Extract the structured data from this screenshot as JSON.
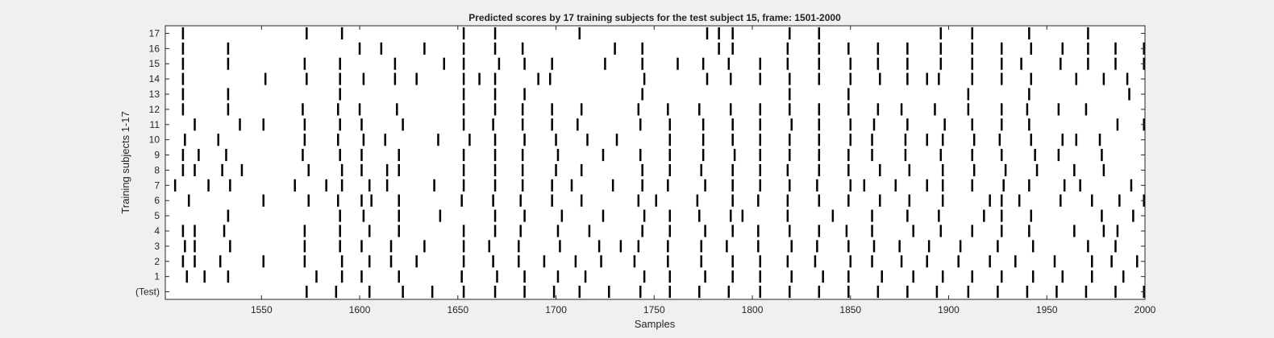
{
  "chart_data": {
    "type": "event-raster",
    "title": "Predicted scores by 17 training subjects for the test subject 15, frame: 1501-2000",
    "xlabel": "Samples",
    "ylabel": "Training subjects 1-17",
    "xlim": [
      1501,
      2000
    ],
    "x_ticks": [
      1550,
      1600,
      1650,
      1700,
      1750,
      1800,
      1850,
      1900,
      1950,
      2000
    ],
    "y_tick_labels": [
      "(Test)",
      "1",
      "2",
      "3",
      "4",
      "5",
      "6",
      "7",
      "8",
      "9",
      "10",
      "11",
      "12",
      "13",
      "14",
      "15",
      "16",
      "17"
    ],
    "grid": false,
    "colors": {
      "background": "#f0f0f0",
      "plot_bg": "#ffffff",
      "mark": "#000000",
      "axis": "#262626"
    },
    "rows": [
      {
        "label": "(Test)",
        "events": [
          1573,
          1588,
          1605,
          1622,
          1637,
          1653,
          1669,
          1684,
          1699,
          1712,
          1727,
          1743,
          1758,
          1773,
          1788,
          1804,
          1819,
          1834,
          1849,
          1864,
          1879,
          1894,
          1910,
          1925,
          1940,
          1955,
          1970,
          1985,
          2000
        ]
      },
      {
        "label": "1",
        "events": [
          1512,
          1521,
          1533,
          1578,
          1591,
          1601,
          1620,
          1652,
          1670,
          1684,
          1701,
          1715,
          1745,
          1758,
          1776,
          1790,
          1804,
          1820,
          1836,
          1849,
          1866,
          1882,
          1897,
          1912,
          1927,
          1943,
          1958,
          1973,
          1989
        ]
      },
      {
        "label": "2",
        "events": [
          1510,
          1516,
          1529,
          1551,
          1572,
          1591,
          1605,
          1616,
          1629,
          1653,
          1668,
          1681,
          1694,
          1710,
          1723,
          1740,
          1757,
          1774,
          1790,
          1804,
          1818,
          1832,
          1850,
          1861,
          1876,
          1889,
          1905,
          1921,
          1934,
          1954,
          1973,
          1983,
          1996
        ]
      },
      {
        "label": "3",
        "events": [
          1511,
          1516,
          1534,
          1572,
          1590,
          1601,
          1616,
          1633,
          1653,
          1666,
          1681,
          1702,
          1722,
          1733,
          1742,
          1757,
          1774,
          1787,
          1803,
          1820,
          1833,
          1849,
          1862,
          1875,
          1890,
          1906,
          1925,
          1943,
          1971,
          1985
        ]
      },
      {
        "label": "4",
        "events": [
          1510,
          1516,
          1531,
          1572,
          1590,
          1605,
          1620,
          1653,
          1669,
          1682,
          1701,
          1717,
          1744,
          1758,
          1776,
          1790,
          1803,
          1819,
          1834,
          1848,
          1861,
          1882,
          1896,
          1912,
          1927,
          1941,
          1964,
          1979,
          1986
        ]
      },
      {
        "label": "5",
        "events": [
          1533,
          1590,
          1602,
          1620,
          1641,
          1669,
          1684,
          1703,
          1724,
          1745,
          1758,
          1773,
          1789,
          1795,
          1818,
          1841,
          1861,
          1879,
          1895,
          1918,
          1927,
          1942,
          1978,
          1994
        ]
      },
      {
        "label": "6",
        "events": [
          1513,
          1551,
          1574,
          1589,
          1601,
          1606,
          1620,
          1652,
          1668,
          1682,
          1698,
          1713,
          1742,
          1751,
          1772,
          1790,
          1803,
          1818,
          1834,
          1849,
          1865,
          1880,
          1897,
          1921,
          1927,
          1936,
          1957,
          1973,
          1987,
          2000
        ]
      },
      {
        "label": "7",
        "events": [
          1506,
          1523,
          1534,
          1567,
          1583,
          1591,
          1605,
          1614,
          1638,
          1653,
          1669,
          1683,
          1698,
          1708,
          1729,
          1744,
          1757,
          1776,
          1790,
          1804,
          1819,
          1833,
          1850,
          1857,
          1873,
          1889,
          1897,
          1912,
          1928,
          1941,
          1959,
          1967,
          1993
        ]
      },
      {
        "label": "8",
        "events": [
          1510,
          1516,
          1530,
          1540,
          1574,
          1591,
          1601,
          1614,
          1620,
          1653,
          1669,
          1683,
          1700,
          1713,
          1744,
          1758,
          1774,
          1790,
          1804,
          1818,
          1834,
          1849,
          1865,
          1880,
          1897,
          1913,
          1929,
          1945,
          1964,
          1979
        ]
      },
      {
        "label": "9",
        "events": [
          1510,
          1518,
          1532,
          1571,
          1590,
          1601,
          1620,
          1653,
          1669,
          1683,
          1701,
          1724,
          1743,
          1758,
          1775,
          1791,
          1804,
          1819,
          1834,
          1849,
          1861,
          1878,
          1896,
          1912,
          1927,
          1944,
          1956,
          1978
        ]
      },
      {
        "label": "10",
        "events": [
          1511,
          1528,
          1572,
          1589,
          1602,
          1613,
          1640,
          1656,
          1669,
          1684,
          1700,
          1716,
          1731,
          1758,
          1775,
          1790,
          1804,
          1819,
          1834,
          1850,
          1861,
          1878,
          1889,
          1897,
          1913,
          1926,
          1942,
          1958,
          1965,
          1977
        ]
      },
      {
        "label": "11",
        "events": [
          1516,
          1539,
          1551,
          1572,
          1590,
          1601,
          1622,
          1653,
          1668,
          1683,
          1698,
          1711,
          1743,
          1758,
          1775,
          1790,
          1804,
          1820,
          1834,
          1850,
          1862,
          1879,
          1898,
          1912,
          1927,
          1941,
          1986,
          2000
        ]
      },
      {
        "label": "12",
        "events": [
          1510,
          1533,
          1571,
          1589,
          1600,
          1619,
          1653,
          1669,
          1683,
          1698,
          1713,
          1742,
          1757,
          1773,
          1789,
          1804,
          1819,
          1834,
          1849,
          1864,
          1876,
          1893,
          1910,
          1927,
          1940,
          1956,
          1970
        ]
      },
      {
        "label": "13",
        "events": [
          1510,
          1533,
          1590,
          1653,
          1669,
          1684,
          1744,
          1819,
          1849,
          1910,
          1941,
          1992
        ]
      },
      {
        "label": "14",
        "events": [
          1510,
          1552,
          1573,
          1590,
          1602,
          1618,
          1629,
          1653,
          1661,
          1669,
          1691,
          1697,
          1745,
          1777,
          1789,
          1804,
          1819,
          1834,
          1850,
          1865,
          1879,
          1889,
          1895,
          1912,
          1927,
          1942,
          1965,
          1979,
          1991
        ]
      },
      {
        "label": "15",
        "events": [
          1510,
          1533,
          1572,
          1590,
          1618,
          1643,
          1653,
          1671,
          1684,
          1698,
          1725,
          1744,
          1762,
          1775,
          1788,
          1804,
          1818,
          1834,
          1850,
          1864,
          1879,
          1896,
          1912,
          1927,
          1937,
          1957,
          1971,
          1985,
          2000
        ]
      },
      {
        "label": "16",
        "events": [
          1510,
          1533,
          1600,
          1611,
          1633,
          1653,
          1669,
          1683,
          1730,
          1744,
          1783,
          1790,
          1818,
          1834,
          1849,
          1864,
          1879,
          1896,
          1912,
          1927,
          1942,
          1958,
          1971,
          1985,
          2000
        ]
      },
      {
        "label": "17",
        "events": [
          1510,
          1573,
          1591,
          1653,
          1669,
          1712,
          1777,
          1783,
          1790,
          1819,
          1834,
          1896,
          1912,
          1941,
          1971
        ]
      }
    ]
  }
}
